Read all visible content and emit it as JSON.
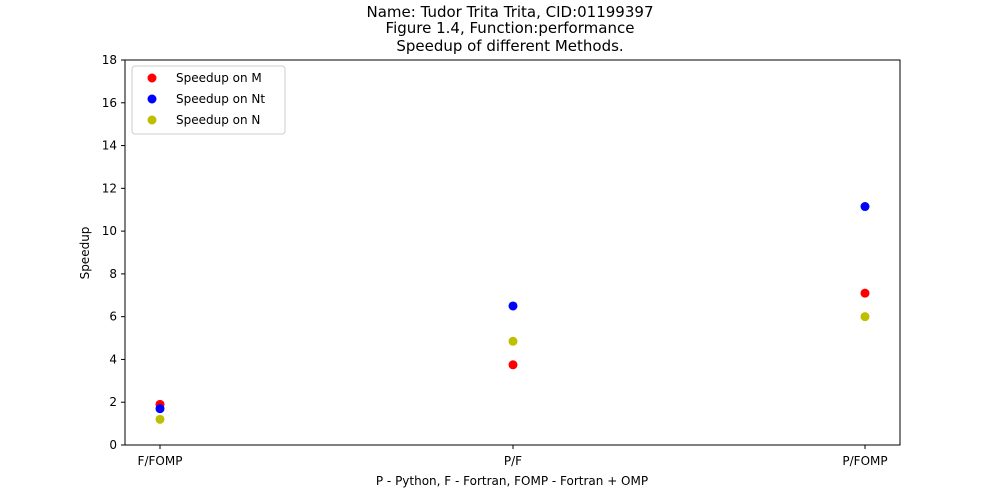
{
  "chart_data": {
    "type": "scatter",
    "title_lines": [
      "Name: Tudor Trita Trita, CID:01199397",
      "Figure 1.4, Function:performance",
      "Speedup of different Methods."
    ],
    "xlabel": "P - Python, F - Fortran, FOMP - Fortran + OMP",
    "ylabel": "Speedup",
    "categories": [
      "F/FOMP",
      "P/F",
      "P/FOMP"
    ],
    "ylim": [
      0,
      18
    ],
    "yticks": [
      0,
      2,
      4,
      6,
      8,
      10,
      12,
      14,
      16,
      18
    ],
    "grid": false,
    "legend_position": "top-left",
    "series": [
      {
        "name": "Speedup on M",
        "color": "#ff0000",
        "values": [
          1.9,
          3.75,
          7.1
        ]
      },
      {
        "name": "Speedup on Nt",
        "color": "#0000ff",
        "values": [
          1.7,
          6.5,
          11.15
        ]
      },
      {
        "name": "Speedup on N",
        "color": "#bfbf00",
        "values": [
          1.2,
          4.85,
          6.0
        ]
      }
    ]
  }
}
